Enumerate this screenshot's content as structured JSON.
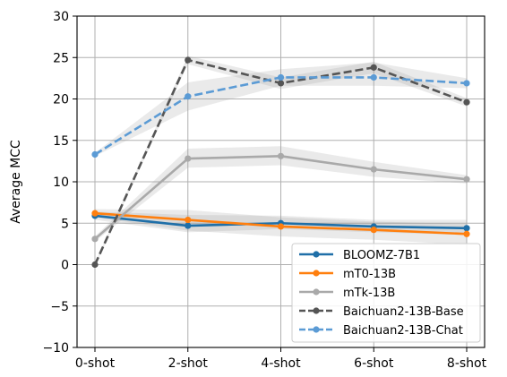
{
  "chart_data": {
    "type": "line",
    "title": "",
    "xlabel": "",
    "ylabel": "Average MCC",
    "categories": [
      "0-shot",
      "2-shot",
      "4-shot",
      "6-shot",
      "8-shot"
    ],
    "ylim": [
      -10,
      30
    ],
    "yticks": [
      "−10",
      "−5",
      "0",
      "5",
      "10",
      "15",
      "20",
      "25",
      "30"
    ],
    "grid": true,
    "legend_position": "lower-right",
    "series": [
      {
        "name": "BLOOMZ-7B1",
        "color": "#1f6fa8",
        "dash": "solid",
        "values": [
          5.9,
          4.7,
          5.0,
          4.6,
          4.4
        ],
        "band_low": [
          5.4,
          3.9,
          4.3,
          3.9,
          3.6
        ],
        "band_high": [
          6.4,
          6.0,
          5.9,
          5.4,
          5.4
        ]
      },
      {
        "name": "mT0-13B",
        "color": "#ff7f0e",
        "dash": "solid",
        "values": [
          6.2,
          5.4,
          4.6,
          4.2,
          3.7
        ],
        "band_low": [
          5.7,
          4.1,
          3.4,
          3.0,
          2.4
        ],
        "band_high": [
          6.7,
          6.6,
          5.7,
          5.2,
          4.9
        ]
      },
      {
        "name": "mTk-13B",
        "color": "#a9a9a9",
        "dash": "solid",
        "values": [
          3.1,
          12.8,
          13.1,
          11.5,
          10.3
        ],
        "band_low": [
          2.8,
          11.7,
          12.0,
          10.6,
          9.8
        ],
        "band_high": [
          3.4,
          14.0,
          14.3,
          12.4,
          10.8
        ]
      },
      {
        "name": "Baichuan2-13B-Base",
        "color": "#555555",
        "dash": "dashed",
        "values": [
          0.0,
          24.7,
          21.9,
          23.8,
          19.6
        ],
        "band_low": [
          -0.2,
          24.2,
          21.2,
          23.1,
          19.1
        ],
        "band_high": [
          0.2,
          25.2,
          22.6,
          24.5,
          20.1
        ]
      },
      {
        "name": "Baichuan2-13B-Chat",
        "color": "#5b9bd5",
        "dash": "dashed",
        "values": [
          13.3,
          20.3,
          22.6,
          22.6,
          21.9
        ],
        "band_low": [
          13.1,
          18.6,
          21.6,
          21.6,
          21.3
        ],
        "band_high": [
          13.5,
          22.0,
          23.6,
          24.4,
          22.5
        ]
      }
    ]
  }
}
